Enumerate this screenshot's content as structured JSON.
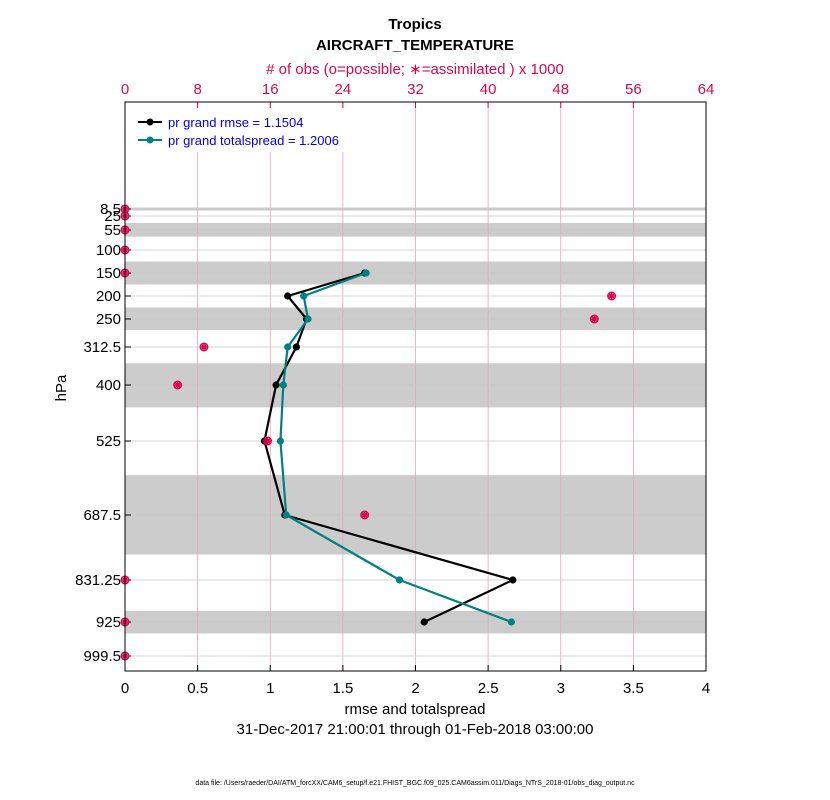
{
  "chart_data": {
    "type": "line",
    "title": "Tropics",
    "subtitle": "AIRCRAFT_TEMPERATURE",
    "top_axis_label": "# of obs (o=possible; ∗=assimilated ) x 1000",
    "xlabel": "rmse and totalspread",
    "ylabel": "hPa",
    "date_range": "31-Dec-2017 21:00:01 through 01-Feb-2018 03:00:00",
    "footnote": "data file: /Users/raeder/DAI/ATM_forcXX/CAM6_setup/f.e21.FHIST_BGC.f09_025.CAM6assim.011/Diags_NTrS_2018-01/obs_diag_output.nc",
    "xlim": [
      0,
      4
    ],
    "x_ticks": [
      0,
      0.5,
      1,
      1.5,
      2,
      2.5,
      3,
      3.5,
      4
    ],
    "x_tick_labels": [
      "0",
      "0.5",
      "1",
      "1.5",
      "2",
      "2.5",
      "3",
      "3.5",
      "4"
    ],
    "top_xlim": [
      0,
      64
    ],
    "top_ticks": [
      0,
      8,
      16,
      24,
      32,
      40,
      48,
      56,
      64
    ],
    "top_tick_labels": [
      "0",
      "8",
      "16",
      "24",
      "32",
      "40",
      "48",
      "56",
      "64"
    ],
    "levels": [
      8.5,
      25,
      55,
      100,
      150,
      200,
      250,
      312.5,
      400,
      525,
      687.5,
      831.25,
      925,
      999.5
    ],
    "level_labels": [
      "8.5",
      "25",
      "55",
      "100",
      "150",
      "200",
      "250",
      "312.5",
      "400",
      "525",
      "687.5",
      "831.25",
      "925",
      "999.5"
    ],
    "grid": true,
    "legend_placement": "top-left",
    "series": [
      {
        "name": "pr grand rmse = 1.1504",
        "color": "#000000",
        "points": [
          {
            "p": 150,
            "x": 1.65
          },
          {
            "p": 200,
            "x": 1.12
          },
          {
            "p": 250,
            "x": 1.25
          },
          {
            "p": 312.5,
            "x": 1.18
          },
          {
            "p": 400,
            "x": 1.04
          },
          {
            "p": 525,
            "x": 0.96
          },
          {
            "p": 687.5,
            "x": 1.1
          },
          {
            "p": 831.25,
            "x": 2.67
          },
          {
            "p": 925,
            "x": 2.06
          }
        ]
      },
      {
        "name": "pr grand totalspread = 1.2006",
        "color": "#008080",
        "points": [
          {
            "p": 150,
            "x": 1.66
          },
          {
            "p": 200,
            "x": 1.23
          },
          {
            "p": 250,
            "x": 1.26
          },
          {
            "p": 312.5,
            "x": 1.12
          },
          {
            "p": 400,
            "x": 1.09
          },
          {
            "p": 525,
            "x": 1.07
          },
          {
            "p": 687.5,
            "x": 1.11
          },
          {
            "p": 831.25,
            "x": 1.89
          },
          {
            "p": 925,
            "x": 2.66
          }
        ]
      }
    ],
    "obs_counts_thousands": {
      "color": "#d6094f",
      "possible": [
        {
          "p": 8.5,
          "n": 0
        },
        {
          "p": 25,
          "n": 0
        },
        {
          "p": 55,
          "n": 0
        },
        {
          "p": 100,
          "n": 0
        },
        {
          "p": 150,
          "n": 0
        },
        {
          "p": 200,
          "n": 53.6
        },
        {
          "p": 250,
          "n": 51.7
        },
        {
          "p": 312.5,
          "n": 8.7
        },
        {
          "p": 400,
          "n": 5.8
        },
        {
          "p": 525,
          "n": 15.7
        },
        {
          "p": 687.5,
          "n": 26.4
        },
        {
          "p": 831.25,
          "n": 0
        },
        {
          "p": 925,
          "n": 0
        },
        {
          "p": 999.5,
          "n": 0
        }
      ],
      "assimilated": [
        {
          "p": 8.5,
          "n": 0
        },
        {
          "p": 25,
          "n": 0
        },
        {
          "p": 55,
          "n": 0
        },
        {
          "p": 100,
          "n": 0
        },
        {
          "p": 150,
          "n": 0
        },
        {
          "p": 200,
          "n": 53.6
        },
        {
          "p": 250,
          "n": 51.7
        },
        {
          "p": 312.5,
          "n": 8.7
        },
        {
          "p": 400,
          "n": 5.8
        },
        {
          "p": 525,
          "n": 15.7
        },
        {
          "p": 687.5,
          "n": 26.4
        },
        {
          "p": 831.25,
          "n": 0
        },
        {
          "p": 925,
          "n": 0
        },
        {
          "p": 999.5,
          "n": 0
        }
      ]
    },
    "shaded_bands_hPa": [
      [
        5,
        12
      ],
      [
        40,
        70
      ],
      [
        125,
        175
      ],
      [
        225,
        275
      ],
      [
        350,
        450
      ],
      [
        600,
        775
      ],
      [
        900,
        950
      ]
    ]
  }
}
